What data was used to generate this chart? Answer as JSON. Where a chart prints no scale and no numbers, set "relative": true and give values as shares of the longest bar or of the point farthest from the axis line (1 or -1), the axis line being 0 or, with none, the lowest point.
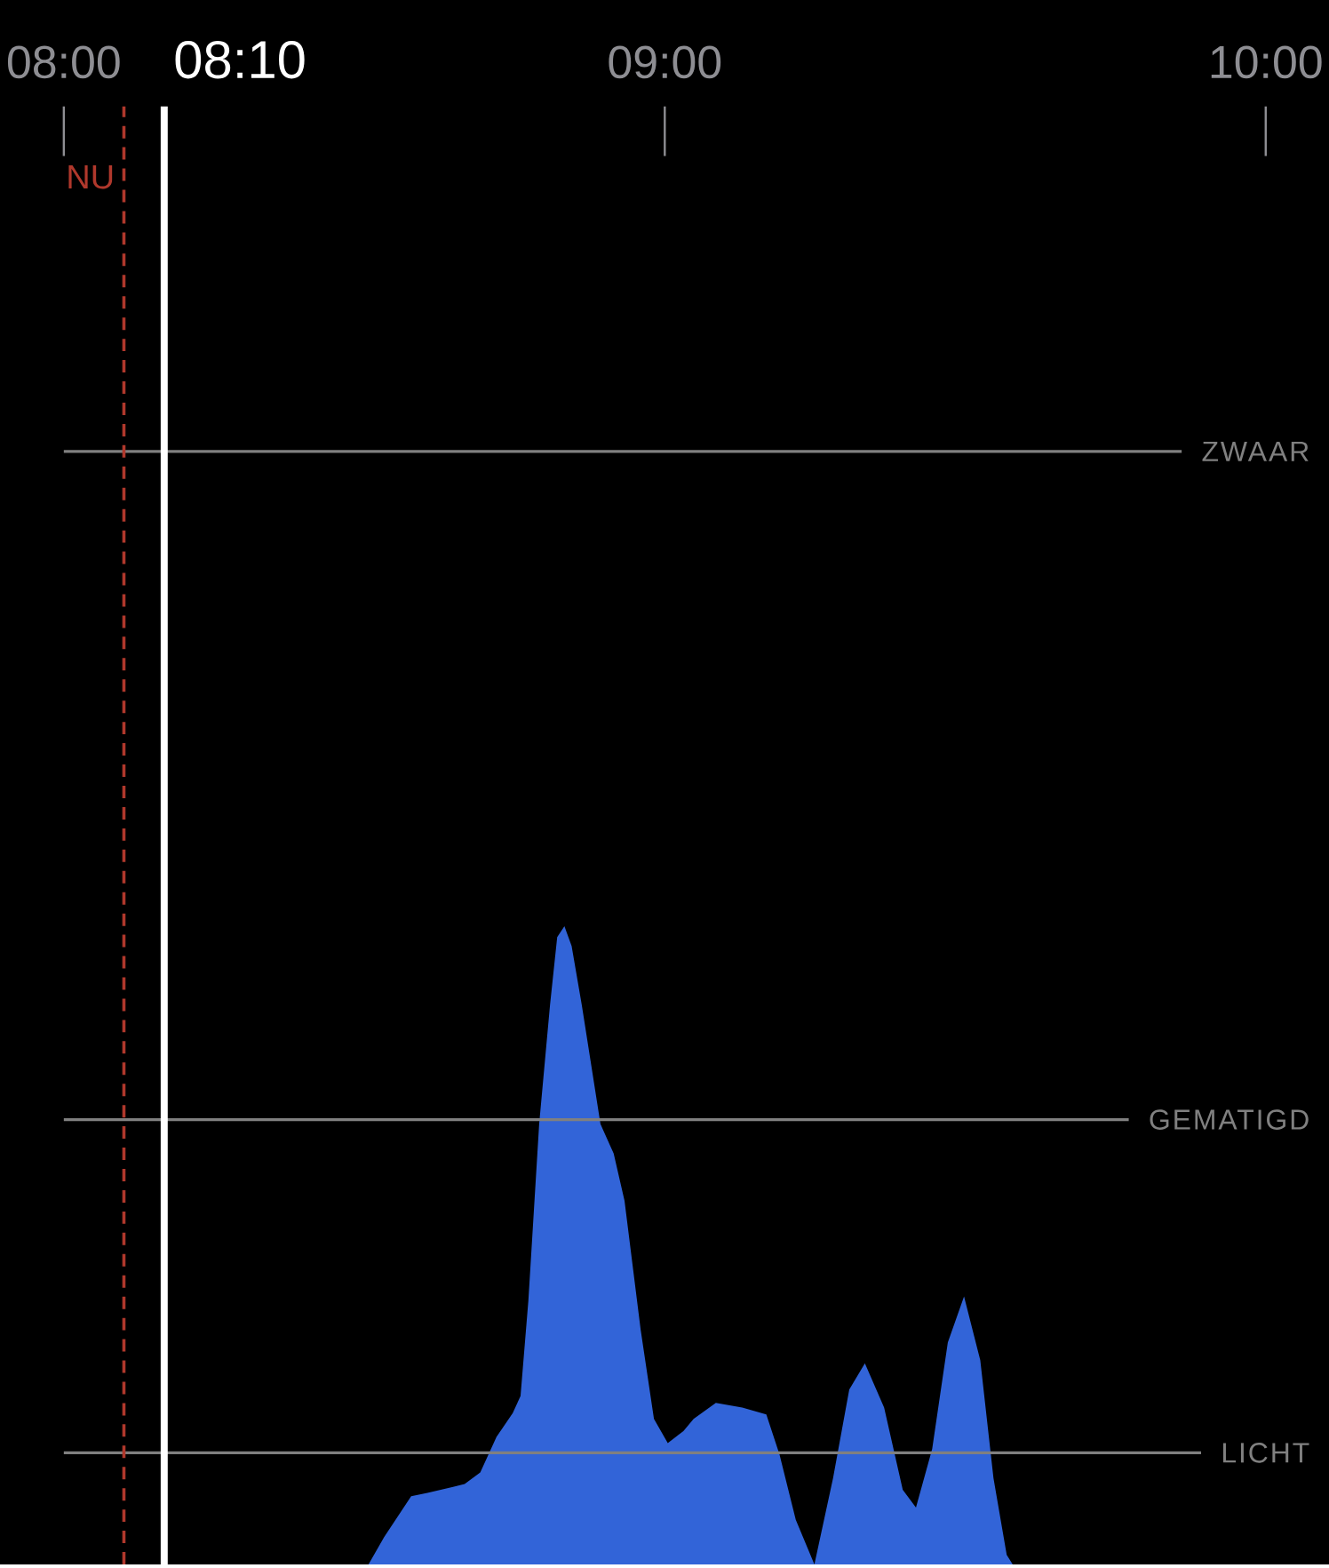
{
  "chart_data": {
    "type": "area",
    "relative": true,
    "color": "#3264d8",
    "x": [
      8.507,
      8.533,
      8.578,
      8.605,
      8.667,
      8.693,
      8.72,
      8.747,
      8.76,
      8.773,
      8.791,
      8.809,
      8.821,
      8.833,
      8.845,
      8.862,
      8.893,
      8.915,
      8.933,
      8.96,
      8.982,
      9.005,
      9.031,
      9.048,
      9.085,
      9.129,
      9.169,
      9.191,
      9.218,
      9.249,
      9.28,
      9.307,
      9.333,
      9.365,
      9.396,
      9.418,
      9.445,
      9.471,
      9.498,
      9.525,
      9.547,
      9.569,
      9.579
    ],
    "values": [
      0,
      0.043,
      0.107,
      0.112,
      0.126,
      0.144,
      0.2,
      0.237,
      0.264,
      0.413,
      0.69,
      0.876,
      0.983,
      1,
      0.969,
      0.876,
      0.69,
      0.644,
      0.57,
      0.367,
      0.228,
      0.19,
      0.209,
      0.228,
      0.253,
      0.246,
      0.235,
      0.172,
      0.07,
      0,
      0.135,
      0.274,
      0.315,
      0.246,
      0.117,
      0.089,
      0.181,
      0.348,
      0.42,
      0.32,
      0.135,
      0.015,
      0
    ],
    "xlim": [
      8,
      10
    ],
    "xticks": [
      {
        "value": 8,
        "label": "08:00"
      },
      {
        "value": 9,
        "label": "09:00"
      },
      {
        "value": 10,
        "label": "10:00"
      }
    ],
    "ref_lines": [
      {
        "axis": "y",
        "value": 1.744,
        "label": "ZWAAR",
        "color": "#808080"
      },
      {
        "axis": "y",
        "value": 0.697,
        "label": "GEMATIGD",
        "color": "#808080"
      },
      {
        "axis": "y",
        "value": 0.175,
        "label": "LICHT",
        "color": "#808080"
      },
      {
        "axis": "x",
        "value": 8.1,
        "label": "NU",
        "color": "#b0382c",
        "line_style": "dashed"
      },
      {
        "axis": "x",
        "value": 8.167,
        "label": "08:10",
        "color": "#ffffff",
        "line_style": "solid"
      }
    ]
  }
}
